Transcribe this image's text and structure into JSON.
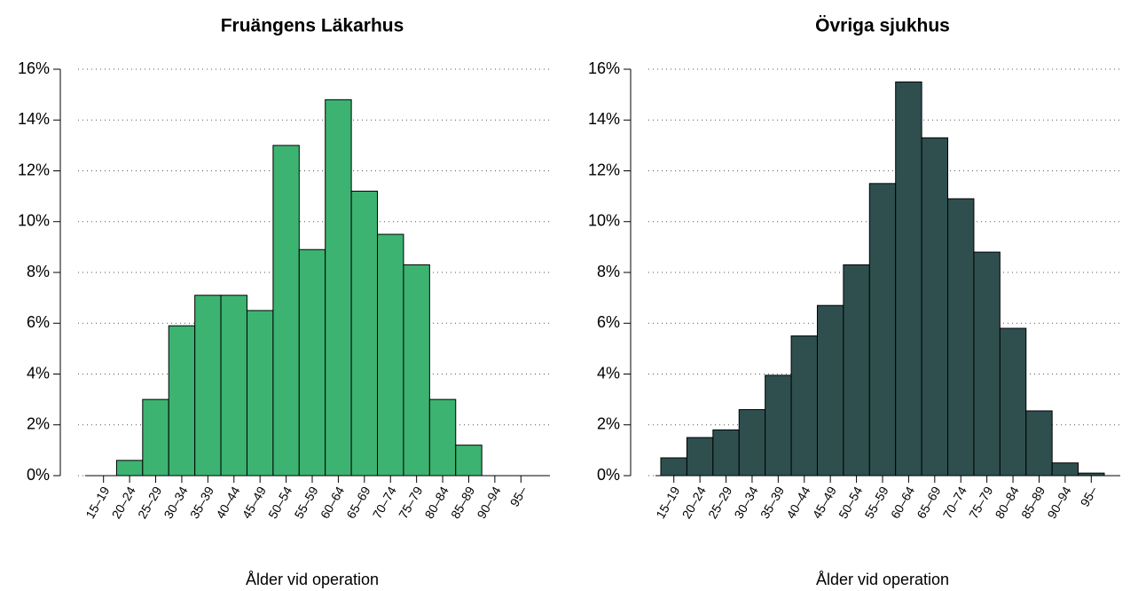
{
  "chart_data": [
    {
      "type": "bar",
      "title": "Fruängens Läkarhus",
      "xlabel": "Ålder vid operation",
      "categories": [
        "15–19",
        "20–24",
        "25–29",
        "30–34",
        "35–39",
        "40–44",
        "45–49",
        "50–54",
        "55–59",
        "60–64",
        "65–69",
        "70–74",
        "75–79",
        "80–84",
        "85–89",
        "90–94",
        "95–"
      ],
      "values": [
        0,
        0.6,
        3.0,
        5.9,
        7.1,
        7.1,
        6.5,
        13.0,
        8.9,
        14.8,
        11.2,
        9.5,
        8.3,
        3.0,
        1.2,
        0,
        0
      ],
      "color": "#3cb371",
      "ylim": [
        0,
        16
      ],
      "yticks": [
        {
          "value": 0,
          "label": "0%"
        },
        {
          "value": 2,
          "label": "2%"
        },
        {
          "value": 4,
          "label": "4%"
        },
        {
          "value": 6,
          "label": "6%"
        },
        {
          "value": 8,
          "label": "8%"
        },
        {
          "value": 10,
          "label": "10%"
        },
        {
          "value": 12,
          "label": "12%"
        },
        {
          "value": 14,
          "label": "14%"
        },
        {
          "value": 16,
          "label": "16%"
        }
      ],
      "grid": true
    },
    {
      "type": "bar",
      "title": "Övriga sjukhus",
      "xlabel": "Ålder vid operation",
      "categories": [
        "15–19",
        "20–24",
        "25–29",
        "30–34",
        "35–39",
        "40–44",
        "45–49",
        "50–54",
        "55–59",
        "60–64",
        "65–69",
        "70–74",
        "75–79",
        "80–84",
        "85–89",
        "90–94",
        "95–"
      ],
      "values": [
        0.7,
        1.5,
        1.8,
        2.6,
        3.95,
        5.5,
        6.7,
        8.3,
        11.5,
        15.5,
        13.3,
        10.9,
        8.8,
        5.8,
        2.55,
        0.5,
        0.1
      ],
      "color": "#2f4f4f",
      "ylim": [
        0,
        16
      ],
      "yticks": [
        {
          "value": 0,
          "label": "0%"
        },
        {
          "value": 2,
          "label": "2%"
        },
        {
          "value": 4,
          "label": "4%"
        },
        {
          "value": 6,
          "label": "6%"
        },
        {
          "value": 8,
          "label": "8%"
        },
        {
          "value": 10,
          "label": "10%"
        },
        {
          "value": 12,
          "label": "12%"
        },
        {
          "value": 14,
          "label": "14%"
        },
        {
          "value": 16,
          "label": "16%"
        }
      ],
      "grid": true
    }
  ]
}
